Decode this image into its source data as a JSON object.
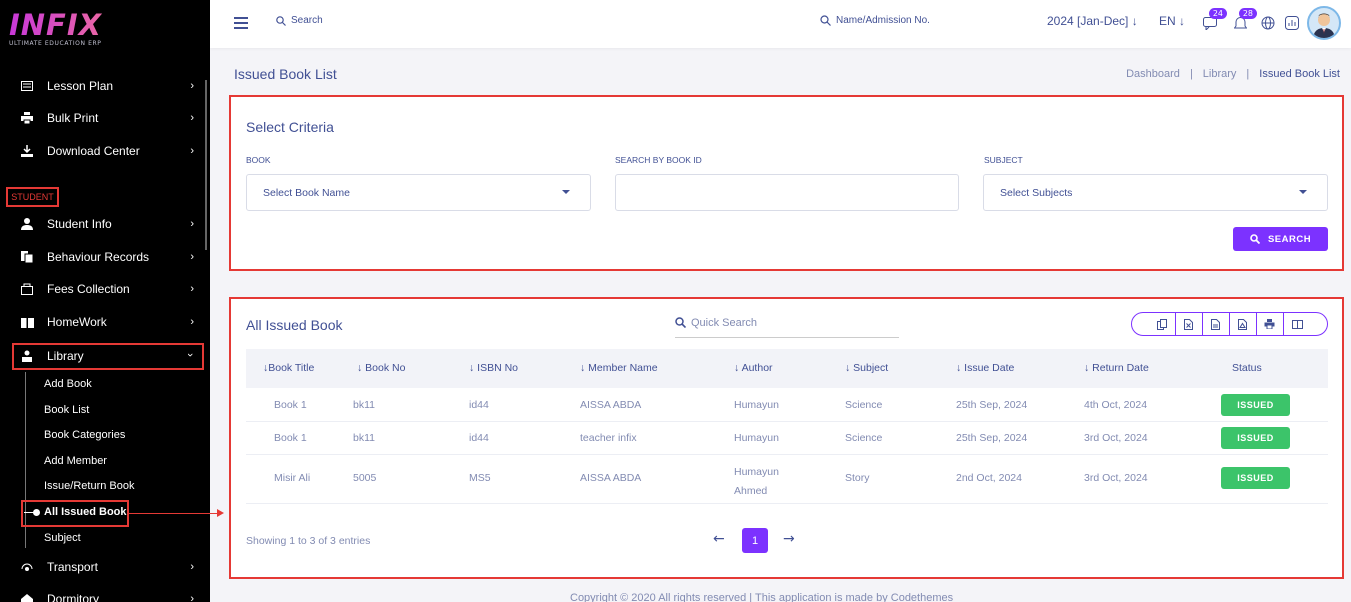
{
  "logo": {
    "main": "INFIX",
    "sub": "ULTIMATE EDUCATION ERP"
  },
  "sidebar": {
    "items_top": [
      {
        "label": "Lesson Plan",
        "icon": "lesson-plan-icon"
      },
      {
        "label": "Bulk Print",
        "icon": "printer-icon"
      },
      {
        "label": "Download Center",
        "icon": "download-icon"
      }
    ],
    "section_label": "STUDENT",
    "items_student": [
      {
        "label": "Student Info",
        "icon": "student-icon"
      },
      {
        "label": "Behaviour Records",
        "icon": "records-icon"
      },
      {
        "label": "Fees Collection",
        "icon": "fees-icon"
      },
      {
        "label": "HomeWork",
        "icon": "book-icon"
      },
      {
        "label": "Library",
        "icon": "library-icon"
      }
    ],
    "library_sub": [
      "Add Book",
      "Book List",
      "Book Categories",
      "Add Member",
      "Issue/Return Book",
      "All Issued Book",
      "Subject"
    ],
    "items_bottom": [
      {
        "label": "Transport",
        "icon": "transport-icon"
      },
      {
        "label": "Dormitory",
        "icon": "dormitory-icon"
      }
    ]
  },
  "topbar": {
    "search_placeholder": "Search",
    "search2_placeholder": "Name/Admission No.",
    "year": "2024 [Jan-Dec]",
    "language": "EN",
    "message_count": "24",
    "notification_count": "28"
  },
  "page": {
    "title": "Issued Book List",
    "breadcrumb": [
      "Dashboard",
      "Library",
      "Issued Book List"
    ]
  },
  "criteria": {
    "title": "Select Criteria",
    "book_label": "BOOK",
    "book_value": "Select Book Name",
    "book_id_label": "SEARCH BY BOOK ID",
    "book_id_value": "",
    "subject_label": "SUBJECT",
    "subject_value": "Select Subjects",
    "search_button": "SEARCH"
  },
  "issued": {
    "title": "All Issued Book",
    "quick_search_placeholder": "Quick Search",
    "columns": [
      "Book Title",
      "Book No",
      "ISBN No",
      "Member Name",
      "Author",
      "Subject",
      "Issue Date",
      "Return Date",
      "Status"
    ],
    "rows": [
      {
        "title": "Book 1",
        "book_no": "bk11",
        "isbn": "id44",
        "member": "AISSA ABDA",
        "author": "Humayun",
        "subject": "Science",
        "issue_date": "25th Sep, 2024",
        "return_date": "4th Oct, 2024",
        "status": "ISSUED"
      },
      {
        "title": "Book 1",
        "book_no": "bk11",
        "isbn": "id44",
        "member": "teacher infix",
        "author": "Humayun",
        "subject": "Science",
        "issue_date": "25th Sep, 2024",
        "return_date": "3rd Oct, 2024",
        "status": "ISSUED"
      },
      {
        "title": "Misir Ali",
        "book_no": "5005",
        "isbn": "MS5",
        "member": "AISSA ABDA",
        "author": "Humayun Ahmed",
        "subject": "Story",
        "issue_date": "2nd Oct, 2024",
        "return_date": "3rd Oct, 2024",
        "status": "ISSUED"
      }
    ],
    "entries_text": "Showing 1 to 3 of 3 entries",
    "current_page": "1"
  },
  "footer": "Copyright © 2020 All rights reserved | This application is made by Codethemes",
  "colors": {
    "accent": "#7c32ff",
    "issued": "#3cc46a",
    "highlight": "#e53935",
    "text": "#415094"
  }
}
